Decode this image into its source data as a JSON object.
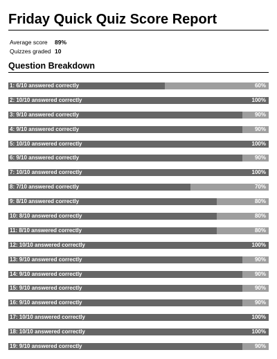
{
  "report": {
    "title": "Friday Quick Quiz Score Report",
    "summary": [
      {
        "label": "Average score",
        "value": "89%"
      },
      {
        "label": "Quizzes graded",
        "value": "10"
      }
    ],
    "section_title": "Question Breakdown"
  },
  "questions": [
    {
      "label": "1: 6/10 answered correctly",
      "percent_text": "60%",
      "fraction": 0.6
    },
    {
      "label": "2: 10/10 answered correctly",
      "percent_text": "100%",
      "fraction": 1.0
    },
    {
      "label": "3: 9/10 answered correctly",
      "percent_text": "90%",
      "fraction": 0.9
    },
    {
      "label": "4: 9/10 answered correctly",
      "percent_text": "90%",
      "fraction": 0.9
    },
    {
      "label": "5: 10/10 answered correctly",
      "percent_text": "100%",
      "fraction": 1.0
    },
    {
      "label": "6: 9/10 answered correctly",
      "percent_text": "90%",
      "fraction": 0.9
    },
    {
      "label": "7: 10/10 answered correctly",
      "percent_text": "100%",
      "fraction": 1.0
    },
    {
      "label": "8: 7/10 answered correctly",
      "percent_text": "70%",
      "fraction": 0.7
    },
    {
      "label": "9: 8/10 answered correctly",
      "percent_text": "80%",
      "fraction": 0.8
    },
    {
      "label": "10: 8/10 answered correctly",
      "percent_text": "80%",
      "fraction": 0.8
    },
    {
      "label": "11: 8/10 answered correctly",
      "percent_text": "80%",
      "fraction": 0.8
    },
    {
      "label": "12: 10/10 answered correctly",
      "percent_text": "100%",
      "fraction": 1.0
    },
    {
      "label": "13: 9/10 answered correctly",
      "percent_text": "90%",
      "fraction": 0.9
    },
    {
      "label": "14: 9/10 answered correctly",
      "percent_text": "90%",
      "fraction": 0.9
    },
    {
      "label": "15: 9/10 answered correctly",
      "percent_text": "90%",
      "fraction": 0.9
    },
    {
      "label": "16: 9/10 answered correctly",
      "percent_text": "90%",
      "fraction": 0.9
    },
    {
      "label": "17: 10/10 answered correctly",
      "percent_text": "100%",
      "fraction": 1.0
    },
    {
      "label": "18: 10/10 answered correctly",
      "percent_text": "100%",
      "fraction": 1.0
    },
    {
      "label": "19: 9/10 answered correctly",
      "percent_text": "90%",
      "fraction": 0.9
    }
  ],
  "colors": {
    "bar_fill": "#666666",
    "bar_track": "#9e9e9e",
    "bar_text": "#ffffff"
  }
}
